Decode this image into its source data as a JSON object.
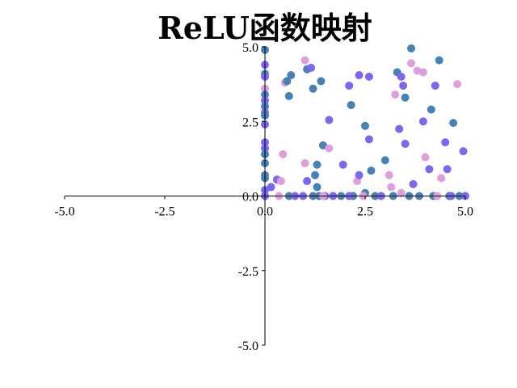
{
  "chart_data": {
    "type": "scatter",
    "title": "ReLU函数映射",
    "xlabel": "",
    "ylabel": "",
    "xlim": [
      -5.0,
      5.0
    ],
    "ylim": [
      -5.0,
      5.0
    ],
    "x_ticks": [
      "-5.0",
      "-2.5",
      "0.0",
      "2.5",
      "5.0"
    ],
    "y_ticks": [
      "5.0",
      "2.5",
      "0.0",
      "-2.5",
      "-5.0"
    ],
    "grid": false,
    "legend": "none",
    "spines": "centered",
    "point_colors": [
      "#4682b4",
      "#7b68ee",
      "#dda0dd"
    ],
    "points": [
      [
        0.0,
        4.9,
        0
      ],
      [
        0.0,
        4.4,
        1
      ],
      [
        0.0,
        4.1,
        0
      ],
      [
        0.0,
        4.0,
        1
      ],
      [
        0.0,
        3.6,
        2
      ],
      [
        0.0,
        3.4,
        0
      ],
      [
        0.0,
        3.2,
        1
      ],
      [
        0.0,
        3.0,
        0
      ],
      [
        0.0,
        2.8,
        1
      ],
      [
        0.0,
        2.7,
        0
      ],
      [
        0.0,
        2.4,
        1
      ],
      [
        0.0,
        1.8,
        1
      ],
      [
        0.0,
        1.6,
        1
      ],
      [
        0.0,
        1.4,
        0
      ],
      [
        0.0,
        1.1,
        0
      ],
      [
        0.0,
        0.7,
        0
      ],
      [
        0.0,
        0.6,
        0
      ],
      [
        0.0,
        0.2,
        1
      ],
      [
        0.0,
        0.0,
        0
      ],
      [
        0.0,
        0.0,
        1
      ],
      [
        0.15,
        0.3,
        1
      ],
      [
        0.3,
        0.55,
        1
      ],
      [
        0.4,
        0.5,
        2
      ],
      [
        0.45,
        1.4,
        2
      ],
      [
        0.5,
        3.8,
        2
      ],
      [
        0.55,
        3.85,
        0
      ],
      [
        0.6,
        3.35,
        0
      ],
      [
        0.6,
        0.0,
        0
      ],
      [
        0.65,
        4.05,
        0
      ],
      [
        0.75,
        0.0,
        1
      ],
      [
        0.95,
        0.0,
        1
      ],
      [
        1.0,
        4.55,
        2
      ],
      [
        1.0,
        1.1,
        2
      ],
      [
        1.05,
        0.5,
        1
      ],
      [
        1.05,
        4.25,
        0
      ],
      [
        1.15,
        4.3,
        1
      ],
      [
        1.2,
        3.6,
        0
      ],
      [
        1.25,
        0.7,
        0
      ],
      [
        1.3,
        1.05,
        0
      ],
      [
        1.3,
        0.3,
        0
      ],
      [
        1.4,
        3.85,
        0
      ],
      [
        1.45,
        1.7,
        0
      ],
      [
        1.6,
        2.55,
        1
      ],
      [
        1.6,
        1.6,
        2
      ],
      [
        1.2,
        0.0,
        0
      ],
      [
        1.35,
        0.0,
        0
      ],
      [
        1.5,
        0.0,
        1
      ],
      [
        1.7,
        0.0,
        1
      ],
      [
        1.9,
        0.0,
        0
      ],
      [
        1.95,
        1.05,
        1
      ],
      [
        2.1,
        3.7,
        1
      ],
      [
        2.15,
        3.05,
        0
      ],
      [
        2.2,
        0.0,
        0
      ],
      [
        2.3,
        0.5,
        2
      ],
      [
        2.35,
        4.05,
        1
      ],
      [
        2.35,
        0.7,
        1
      ],
      [
        2.5,
        0.1,
        0
      ],
      [
        2.5,
        2.35,
        0
      ],
      [
        2.6,
        4.0,
        1
      ],
      [
        2.6,
        1.9,
        1
      ],
      [
        2.65,
        0.85,
        0
      ],
      [
        2.75,
        0.0,
        0
      ],
      [
        2.9,
        0.0,
        1
      ],
      [
        3.0,
        1.2,
        0
      ],
      [
        3.1,
        0.7,
        2
      ],
      [
        3.15,
        0.3,
        2
      ],
      [
        3.25,
        3.4,
        2
      ],
      [
        3.3,
        4.15,
        0
      ],
      [
        3.35,
        2.25,
        1
      ],
      [
        3.4,
        4.0,
        1
      ],
      [
        3.4,
        0.1,
        2
      ],
      [
        3.45,
        3.7,
        1
      ],
      [
        3.5,
        3.3,
        0
      ],
      [
        3.5,
        1.75,
        1
      ],
      [
        3.6,
        0.0,
        0
      ],
      [
        3.65,
        4.95,
        0
      ],
      [
        3.65,
        4.45,
        2
      ],
      [
        3.7,
        0.4,
        1
      ],
      [
        3.8,
        4.2,
        2
      ],
      [
        3.85,
        0.0,
        0
      ],
      [
        3.95,
        4.15,
        2
      ],
      [
        3.95,
        2.5,
        1
      ],
      [
        4.0,
        1.3,
        2
      ],
      [
        4.1,
        0.9,
        1
      ],
      [
        4.15,
        2.9,
        0
      ],
      [
        4.2,
        0.0,
        0
      ],
      [
        4.25,
        3.7,
        1
      ],
      [
        4.35,
        4.55,
        0
      ],
      [
        4.4,
        0.6,
        2
      ],
      [
        4.5,
        1.8,
        1
      ],
      [
        4.55,
        0.9,
        1
      ],
      [
        4.6,
        0.0,
        0
      ],
      [
        4.65,
        0.0,
        1
      ],
      [
        4.7,
        2.45,
        0
      ],
      [
        4.8,
        3.75,
        2
      ],
      [
        4.85,
        0.0,
        0
      ],
      [
        4.95,
        1.5,
        1
      ],
      [
        5.0,
        0.0,
        1
      ],
      [
        0.35,
        0.0,
        2
      ],
      [
        2.1,
        0.0,
        1
      ],
      [
        3.2,
        0.0,
        0
      ],
      [
        4.3,
        0.0,
        2
      ],
      [
        1.45,
        0.0,
        2
      ],
      [
        2.45,
        0.0,
        2
      ]
    ]
  }
}
